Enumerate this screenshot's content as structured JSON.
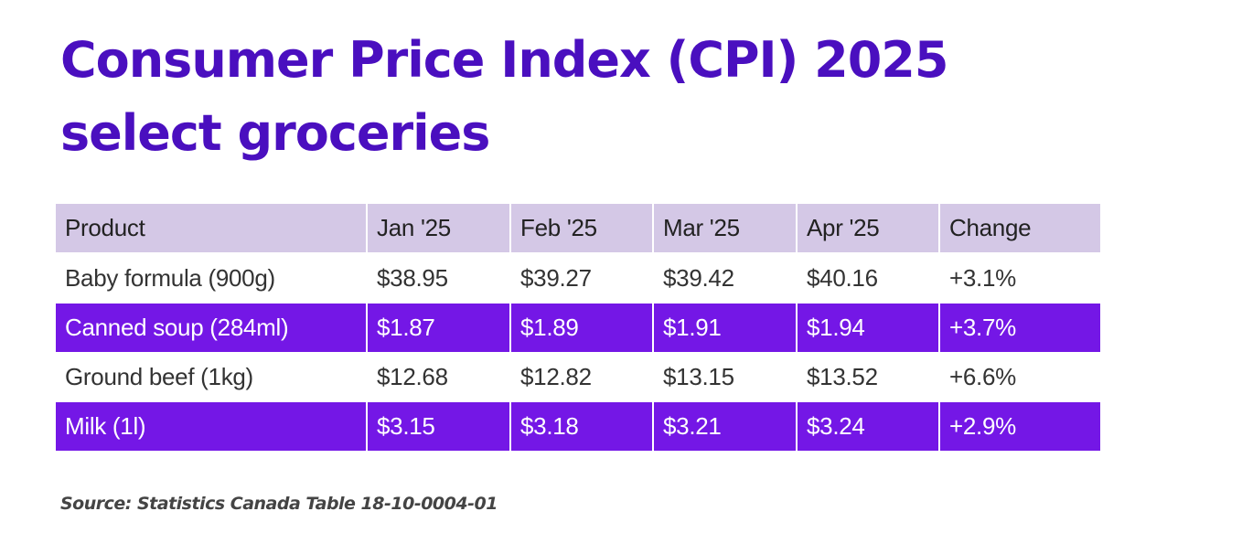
{
  "title": {
    "line1": "Consumer Price Index (CPI) 2025",
    "line2": "select groceries"
  },
  "colors": {
    "title": "#4a0fbf",
    "header_bg": "#d4c8e6",
    "accent_row_bg": "#7417e6",
    "accent_row_text": "#ffffff",
    "body_text": "#333333"
  },
  "chart_data": {
    "type": "table",
    "title": "Consumer Price Index (CPI) 2025 select groceries",
    "columns": [
      "Product",
      "Jan '25",
      "Feb '25",
      "Mar '25",
      "Apr '25",
      "Change"
    ],
    "rows": [
      [
        "Baby formula (900g)",
        "$38.95",
        "$39.27",
        "$39.42",
        "$40.16",
        "+3.1%"
      ],
      [
        "Canned soup (284ml)",
        "$1.87",
        "$1.89",
        "$1.91",
        "$1.94",
        "+3.7%"
      ],
      [
        "Ground beef (1kg)",
        "$12.68",
        "$12.82",
        "$13.15",
        "$13.52",
        "+6.6%"
      ],
      [
        "Milk (1l)",
        "$3.15",
        "$3.18",
        "$3.21",
        "$3.24",
        "+2.9%"
      ]
    ],
    "row_styles": [
      "plain",
      "accent",
      "plain",
      "accent"
    ]
  },
  "source": "Source: Statistics Canada Table 18-10-0004-01"
}
